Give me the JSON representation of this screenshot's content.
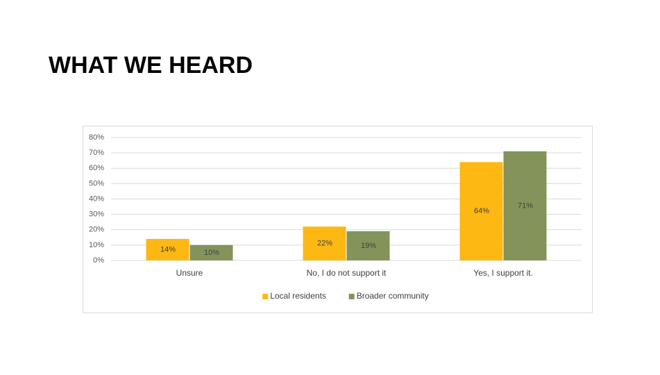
{
  "chart_data": {
    "type": "bar",
    "title": "WHAT WE HEARD",
    "categories": [
      "Unsure",
      "No, I do not support it",
      "Yes, I support it."
    ],
    "series": [
      {
        "name": "Local residents",
        "color": "#fdb813",
        "values": [
          14,
          22,
          64
        ],
        "value_labels": [
          "14%",
          "22%",
          "64%"
        ]
      },
      {
        "name": "Broader community",
        "color": "#84935a",
        "values": [
          10,
          19,
          71
        ],
        "value_labels": [
          "10%",
          "19%",
          "71%"
        ]
      }
    ],
    "ylim": [
      0,
      80
    ],
    "yticks": [
      {
        "value": 0,
        "label": "0%"
      },
      {
        "value": 10,
        "label": "10%"
      },
      {
        "value": 20,
        "label": "20%"
      },
      {
        "value": 30,
        "label": "30%"
      },
      {
        "value": 40,
        "label": "40%"
      },
      {
        "value": 50,
        "label": "50%"
      },
      {
        "value": 60,
        "label": "60%"
      },
      {
        "value": 70,
        "label": "70%"
      },
      {
        "value": 80,
        "label": "80%"
      }
    ],
    "grid": true,
    "legend": "bottom"
  }
}
